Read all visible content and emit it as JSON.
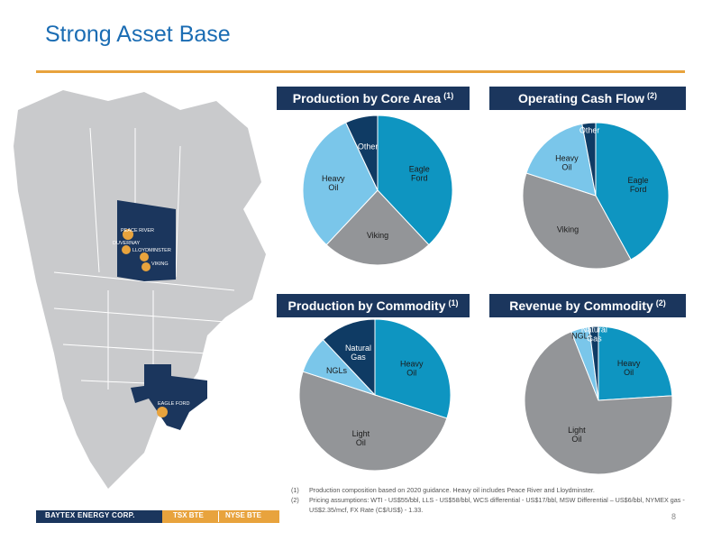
{
  "title": "Strong Asset Base",
  "colors": {
    "title": "#1a6cb3",
    "accent": "#e8a33d",
    "banner": "#1b365d",
    "eagle_ford": "#0e95c1",
    "viking": "#939598",
    "heavy_oil": "#7ac6ea",
    "other": "#0f3b64"
  },
  "map": {
    "regions": [
      "PEACE RIVER",
      "DUVERNAY",
      "LLOYDMINSTER",
      "VIKING",
      "EAGLE FORD"
    ]
  },
  "chart_data": [
    {
      "type": "pie",
      "title": "Production by Core Area",
      "footnote_ref": "(1)",
      "slices": [
        {
          "label": "Eagle Ford",
          "value": 38,
          "color": "#0e95c1"
        },
        {
          "label": "Viking",
          "value": 24,
          "color": "#939598"
        },
        {
          "label": "Heavy Oil",
          "value": 31,
          "color": "#7ac6ea"
        },
        {
          "label": "Other",
          "value": 7,
          "color": "#0f3b64"
        }
      ]
    },
    {
      "type": "pie",
      "title": "Operating Cash Flow",
      "footnote_ref": "(2)",
      "slices": [
        {
          "label": "Eagle Ford",
          "value": 42,
          "color": "#0e95c1"
        },
        {
          "label": "Viking",
          "value": 38,
          "color": "#939598"
        },
        {
          "label": "Heavy Oil",
          "value": 17,
          "color": "#7ac6ea"
        },
        {
          "label": "Other",
          "value": 3,
          "color": "#0f3b64"
        }
      ]
    },
    {
      "type": "pie",
      "title": "Production by Commodity",
      "footnote_ref": "(1)",
      "slices": [
        {
          "label": "Heavy Oil",
          "value": 30,
          "color": "#0e95c1"
        },
        {
          "label": "Light Oil",
          "value": 50,
          "color": "#939598"
        },
        {
          "label": "NGLs",
          "value": 8,
          "color": "#7ac6ea"
        },
        {
          "label": "Natural Gas",
          "value": 12,
          "color": "#0f3b64"
        }
      ]
    },
    {
      "type": "pie",
      "title": "Revenue by Commodity",
      "footnote_ref": "(2)",
      "slices": [
        {
          "label": "Heavy Oil",
          "value": 24,
          "color": "#0e95c1"
        },
        {
          "label": "Light Oil",
          "value": 70,
          "color": "#939598"
        },
        {
          "label": "NGLs",
          "value": 4,
          "color": "#7ac6ea"
        },
        {
          "label": "Natural Gas",
          "value": 2,
          "color": "#0f3b64"
        }
      ]
    }
  ],
  "footnotes": [
    {
      "num": "(1)",
      "text": "Production composition based on 2020 guidance. Heavy oil includes Peace River and Lloydminster."
    },
    {
      "num": "(2)",
      "text": "Pricing assumptions: WTI - US$55/bbl, LLS - US$58/bbl, WCS differential - US$17/bbl, MSW Differential – US$6/bbl, NYMEX gas - US$2.35/mcf, FX Rate (C$/US$) - 1.33."
    }
  ],
  "footer": {
    "company": "BAYTEX ENERGY CORP.",
    "tsx": "TSX BTE",
    "nyse": "NYSE BTE",
    "page": "8"
  }
}
